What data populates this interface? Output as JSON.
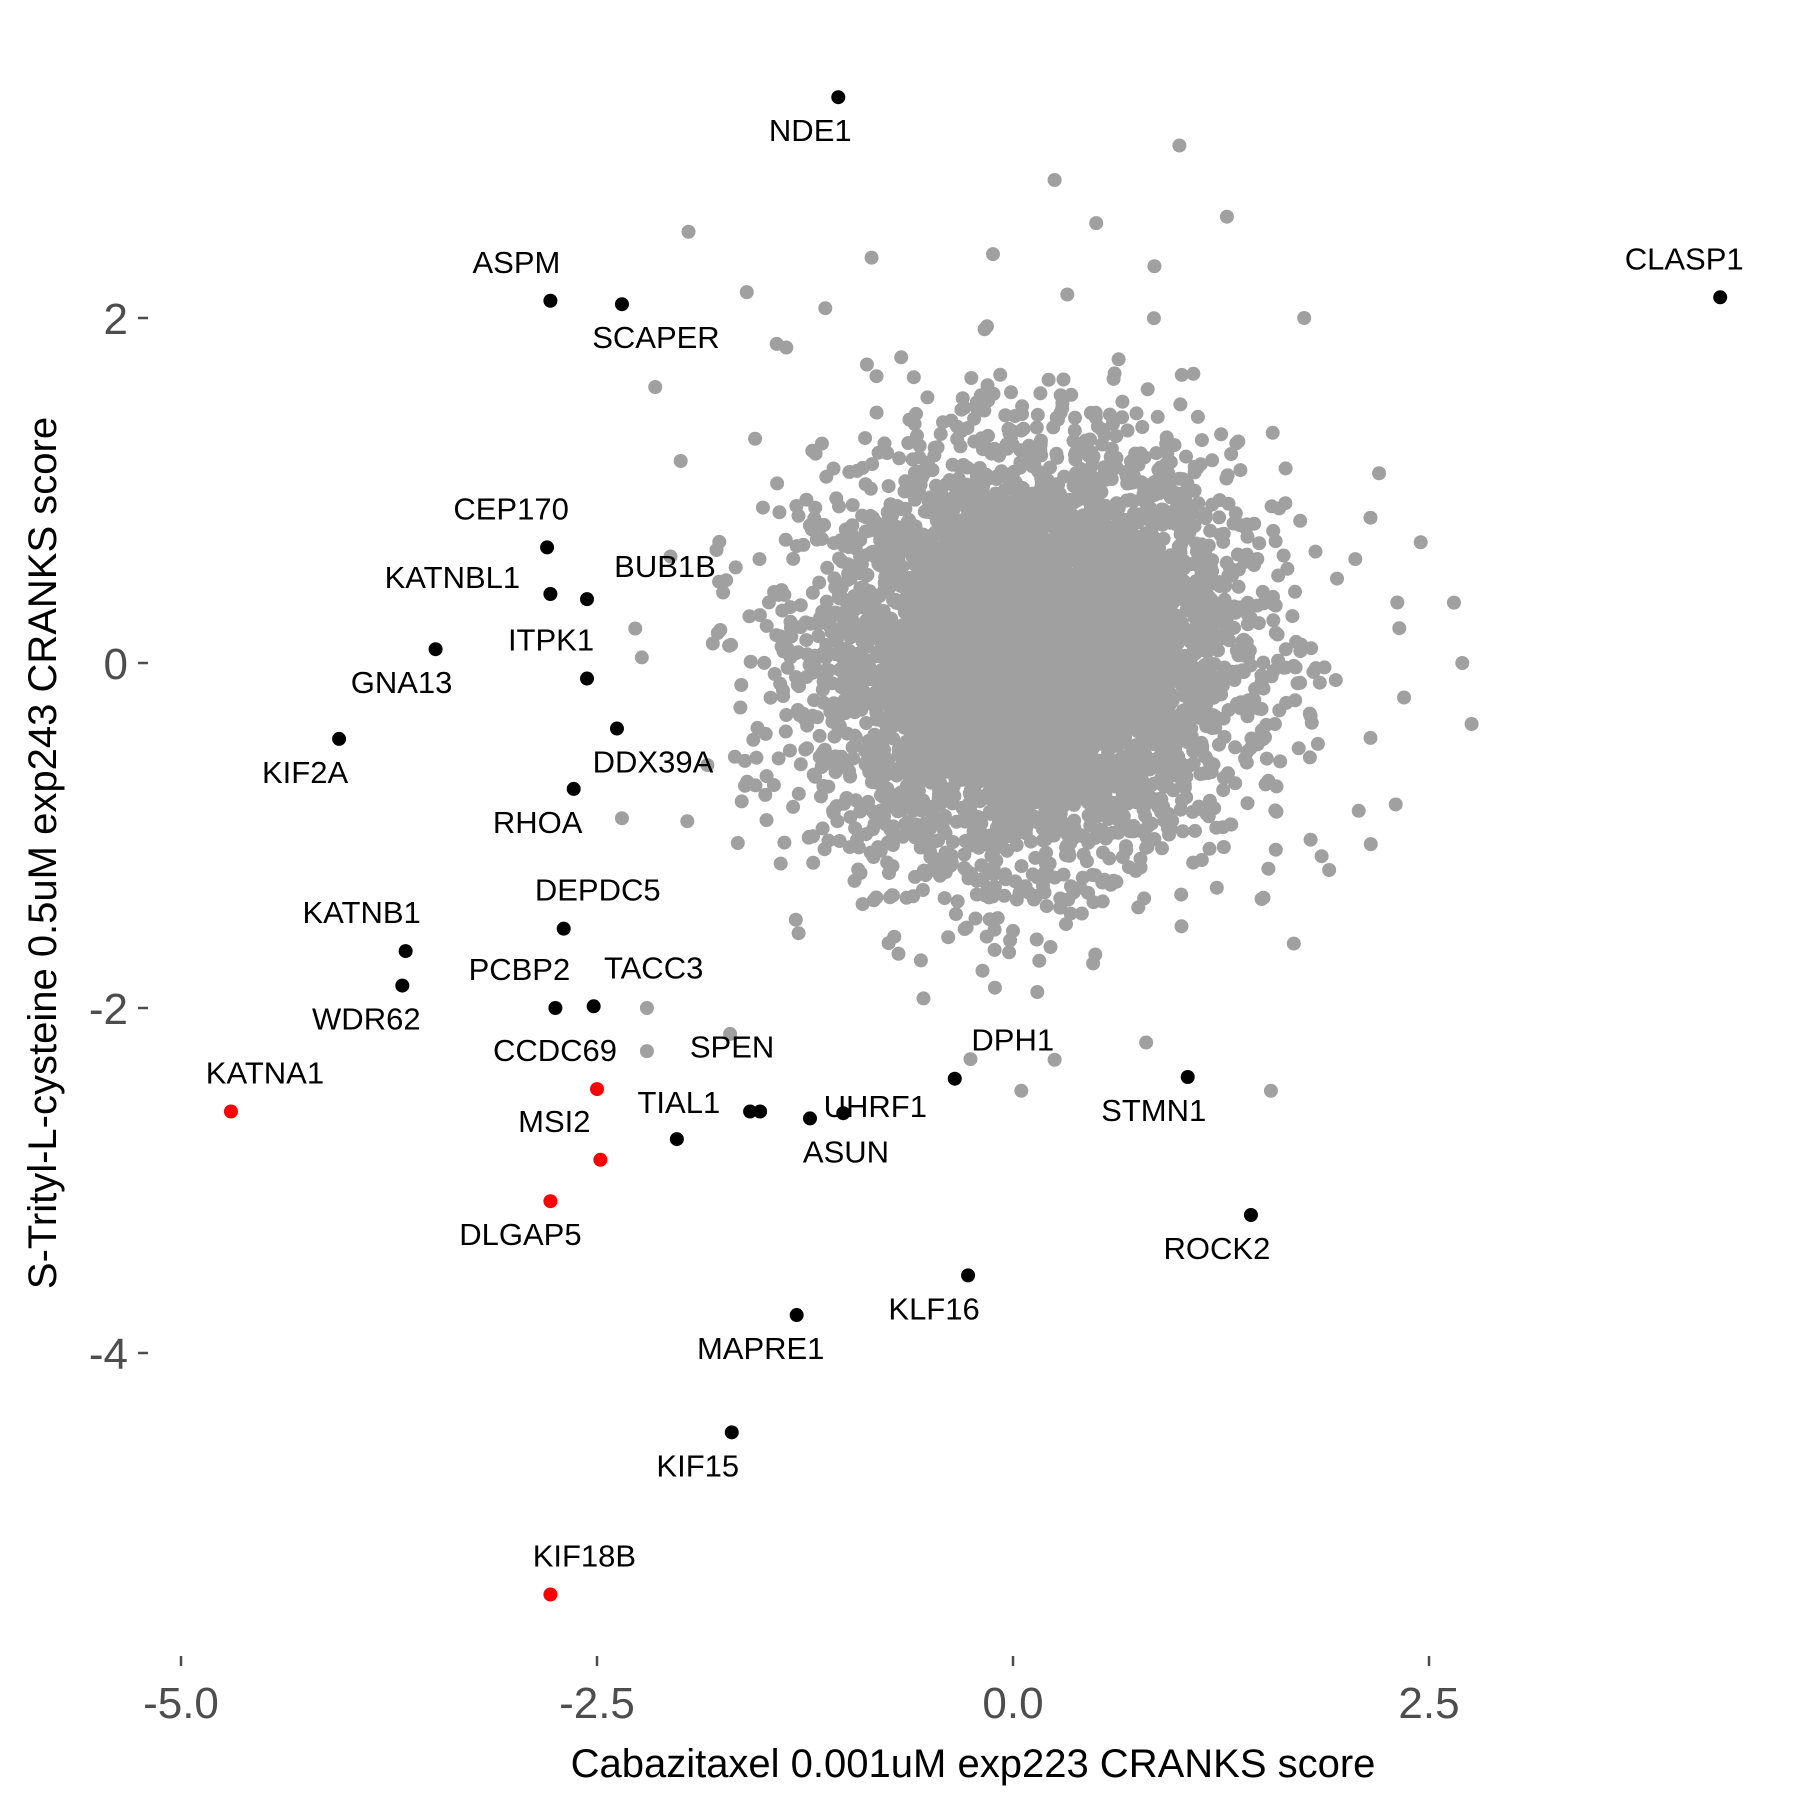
{
  "chart_data": {
    "type": "scatter",
    "title": "",
    "xlabel": "Cabazitaxel 0.001uM exp223 CRANKS score",
    "ylabel": "S-Trityl-L-cysteine 0.5uM exp243 CRANKS score",
    "xlim": [
      -5.15,
      4.65
    ],
    "ylim": [
      -5.75,
      3.7
    ],
    "x_ticks": [
      -5.0,
      -2.5,
      0.0,
      2.5
    ],
    "x_tick_labels": [
      "-5.0",
      "-2.5",
      "0.0",
      "2.5"
    ],
    "y_ticks": [
      2,
      0,
      -2,
      -4
    ],
    "y_tick_labels": [
      "2",
      "0",
      "-2",
      "-4"
    ],
    "grid": false,
    "legend": "none",
    "colors": {
      "background_points": "#a0a0a0",
      "highlight": "#000000",
      "highlight_red": "#ff0000",
      "axis_text": "#4d4d4d"
    },
    "background_cloud": {
      "description_count": 6000,
      "center": [
        0.1,
        0.05
      ],
      "sd": [
        0.62,
        0.58
      ],
      "correlation": 0.05
    },
    "series": [
      {
        "color": "black",
        "points": [
          {
            "label": "NDE1",
            "x": -1.05,
            "y": 3.28
          },
          {
            "label": "CLASP1",
            "x": 4.25,
            "y": 2.12
          },
          {
            "label": "ASPM",
            "x": -2.78,
            "y": 2.1
          },
          {
            "label": "SCAPER",
            "x": -2.35,
            "y": 2.08
          },
          {
            "label": "CEP170",
            "x": -2.8,
            "y": 0.67
          },
          {
            "label": "KATNBL1",
            "x": -2.78,
            "y": 0.4
          },
          {
            "label": "BUB1B",
            "x": -2.56,
            "y": 0.37
          },
          {
            "label": "GNA13",
            "x": -3.47,
            "y": 0.08
          },
          {
            "label": "ITPK1",
            "x": -2.56,
            "y": -0.09
          },
          {
            "label": "KIF2A",
            "x": -4.05,
            "y": -0.44
          },
          {
            "label": "DDX39A",
            "x": -2.38,
            "y": -0.38
          },
          {
            "label": "RHOA",
            "x": -2.64,
            "y": -0.73
          },
          {
            "label": "DEPDC5",
            "x": -2.7,
            "y": -1.54
          },
          {
            "label": "KATNB1",
            "x": -3.65,
            "y": -1.67
          },
          {
            "label": "WDR62",
            "x": -3.67,
            "y": -1.87
          },
          {
            "label": "PCBP2",
            "x": -2.75,
            "y": -2.0
          },
          {
            "label": "TACC3",
            "x": -2.52,
            "y": -1.99
          },
          {
            "label": "SPEN",
            "x": -1.58,
            "y": -2.6
          },
          {
            "label": "",
            "x": -1.52,
            "y": -2.6
          },
          {
            "label": "TIAL1",
            "x": -2.02,
            "y": -2.76
          },
          {
            "label": "UHRF1",
            "x": -1.02,
            "y": -2.61
          },
          {
            "label": "ASUN",
            "x": -1.22,
            "y": -2.64
          },
          {
            "label": "DPH1",
            "x": -0.35,
            "y": -2.41
          },
          {
            "label": "STMN1",
            "x": 1.05,
            "y": -2.4
          },
          {
            "label": "ROCK2",
            "x": 1.43,
            "y": -3.2
          },
          {
            "label": "KLF16",
            "x": -0.27,
            "y": -3.55
          },
          {
            "label": "MAPRE1",
            "x": -1.3,
            "y": -3.78
          },
          {
            "label": "KIF15",
            "x": -1.69,
            "y": -4.46
          }
        ]
      },
      {
        "color": "red",
        "points": [
          {
            "label": "KATNA1",
            "x": -4.7,
            "y": -2.6
          },
          {
            "label": "CCDC69",
            "x": -2.5,
            "y": -2.47
          },
          {
            "label": "MSI2",
            "x": -2.48,
            "y": -2.88
          },
          {
            "label": "DLGAP5",
            "x": -2.78,
            "y": -3.12
          },
          {
            "label": "KIF18B",
            "x": -2.78,
            "y": -5.4
          }
        ]
      }
    ],
    "background_scattered_points": [
      {
        "x": 1.0,
        "y": 3.0
      },
      {
        "x": 0.25,
        "y": 2.8
      },
      {
        "x": -1.95,
        "y": 2.5
      },
      {
        "x": 0.5,
        "y": 2.55
      },
      {
        "x": -0.85,
        "y": 2.35
      },
      {
        "x": -0.12,
        "y": 2.37
      },
      {
        "x": 0.85,
        "y": 2.3
      },
      {
        "x": -1.6,
        "y": 2.15
      },
      {
        "x": -1.42,
        "y": 1.85
      },
      {
        "x": -2.15,
        "y": 1.6
      },
      {
        "x": -1.55,
        "y": 1.3
      },
      {
        "x": 1.75,
        "y": 2.0
      },
      {
        "x": 2.2,
        "y": 1.1
      },
      {
        "x": 2.45,
        "y": 0.7
      },
      {
        "x": 2.65,
        "y": 0.35
      },
      {
        "x": 2.7,
        "y": -0.0
      },
      {
        "x": 2.35,
        "y": -0.2
      },
      {
        "x": 2.3,
        "y": -0.82
      },
      {
        "x": 2.15,
        "y": -1.05
      },
      {
        "x": 1.9,
        "y": -1.2
      },
      {
        "x": -2.27,
        "y": 0.2
      },
      {
        "x": -2.35,
        "y": -0.9
      },
      {
        "x": 0.05,
        "y": -2.48
      },
      {
        "x": 1.55,
        "y": -2.48
      },
      {
        "x": 0.8,
        "y": -2.2
      },
      {
        "x": 0.25,
        "y": -2.3
      },
      {
        "x": -2.2,
        "y": -2.25
      },
      {
        "x": -1.7,
        "y": -2.15
      },
      {
        "x": -2.2,
        "y": -2.0
      }
    ]
  }
}
